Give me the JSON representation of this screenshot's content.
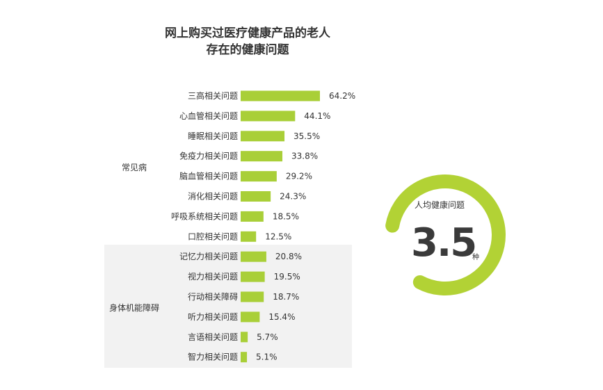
{
  "title": {
    "line1": "网上购买过医疗健康产品的老人",
    "line2": "存在的健康问题"
  },
  "colors": {
    "bar": "#a9cf38",
    "ring": "#b2d235",
    "group_band": "#f2f2f2"
  },
  "chart_data": {
    "type": "bar",
    "orientation": "horizontal",
    "groups": [
      {
        "label": "常见病",
        "categories": [
          "三高相关问题",
          "心血管相关问题",
          "睡眠相关问题",
          "免疫力相关问题",
          "脑血管相关问题",
          "消化相关问题",
          "呼吸系统相关问题",
          "口腔相关问题"
        ]
      },
      {
        "label": "身体机能障碍",
        "categories": [
          "记忆力相关问题",
          "视力相关问题",
          "行动相关障碍",
          "听力相关问题",
          "言语相关问题",
          "智力相关问题"
        ]
      }
    ],
    "categories": [
      "三高相关问题",
      "心血管相关问题",
      "睡眠相关问题",
      "免疫力相关问题",
      "脑血管相关问题",
      "消化相关问题",
      "呼吸系统相关问题",
      "口腔相关问题",
      "记忆力相关问题",
      "视力相关问题",
      "行动相关障碍",
      "听力相关问题",
      "言语相关问题",
      "智力相关问题"
    ],
    "values": [
      64.2,
      44.1,
      35.5,
      33.8,
      29.2,
      24.3,
      18.5,
      12.5,
      20.8,
      19.5,
      18.7,
      15.4,
      5.7,
      5.1
    ],
    "value_labels": [
      "64.2%",
      "44.1%",
      "35.5%",
      "33.8%",
      "29.2%",
      "24.3%",
      "18.5%",
      "12.5%",
      "20.8%",
      "19.5%",
      "18.7%",
      "15.4%",
      "5.7%",
      "5.1%"
    ],
    "xlim": [
      0,
      64.2
    ],
    "grid": false,
    "legend": "none"
  },
  "summary": {
    "caption": "人均健康问题",
    "value": "3.5",
    "unit": "种",
    "ring_fill": 0.8
  }
}
